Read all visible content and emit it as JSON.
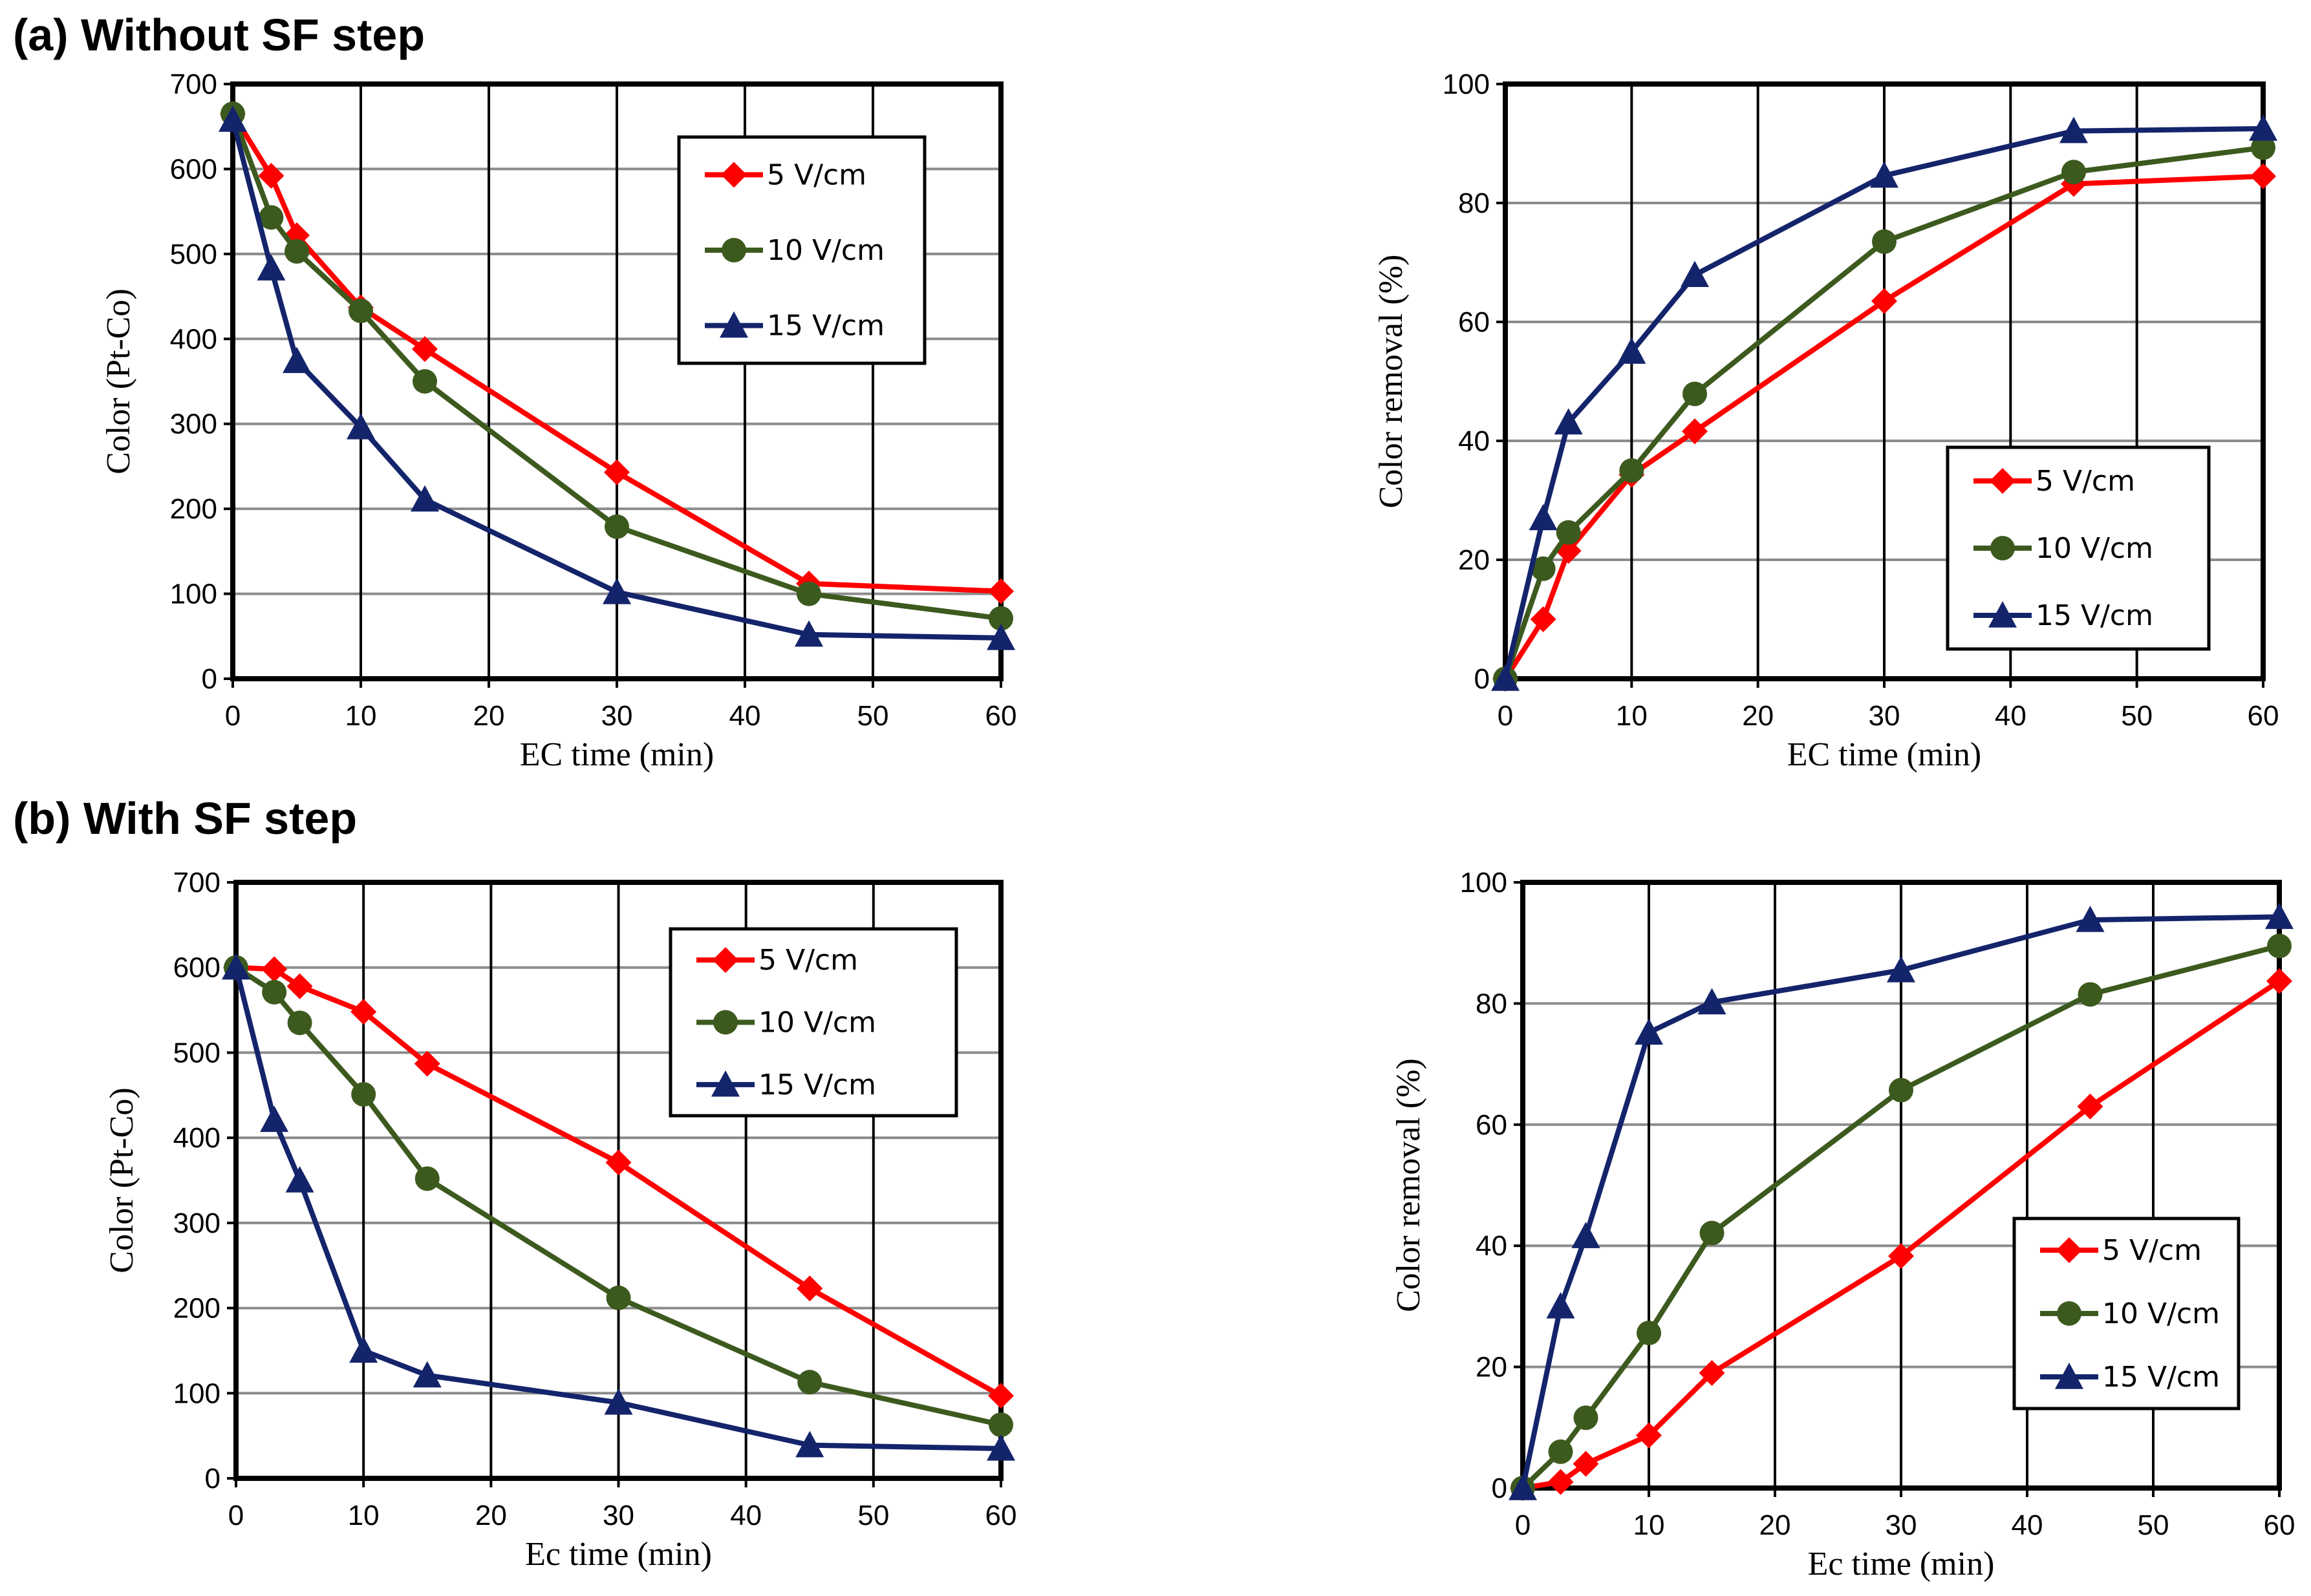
{
  "panel_titles": [
    "(a) Without SF step",
    "(b) With SF step"
  ],
  "colors": {
    "5": "#ff0000",
    "10": "#3d5a1e",
    "15": "#14246b"
  },
  "chart_data": [
    {
      "id": "a-color",
      "type": "line",
      "xlabel": "EC time (min)",
      "ylabel": "Color (Pt-Co)",
      "xlim": [
        0,
        60
      ],
      "ylim": [
        0,
        700
      ],
      "xticks": [
        0,
        10,
        20,
        30,
        40,
        50,
        60
      ],
      "yticks": [
        0,
        100,
        200,
        300,
        400,
        500,
        600,
        700
      ],
      "grid": true,
      "legend": "top-right",
      "series": [
        {
          "name": "5 V/cm",
          "marker": "diamond",
          "x": [
            0,
            3,
            5,
            10,
            15,
            30,
            45,
            60
          ],
          "y": [
            665,
            592,
            522,
            437,
            388,
            243,
            112,
            103
          ]
        },
        {
          "name": "10 V/cm",
          "marker": "circle",
          "x": [
            0,
            3,
            5,
            10,
            15,
            30,
            45,
            60
          ],
          "y": [
            665,
            543,
            503,
            433,
            350,
            179,
            100,
            71
          ]
        },
        {
          "name": "15 V/cm",
          "marker": "triangle",
          "x": [
            0,
            3,
            5,
            10,
            15,
            30,
            45,
            60
          ],
          "y": [
            658,
            483,
            374,
            296,
            211,
            102,
            52,
            48
          ]
        }
      ]
    },
    {
      "id": "a-removal",
      "type": "line",
      "xlabel": "EC time (min)",
      "ylabel": "Color  removal (%)",
      "xlim": [
        0,
        60
      ],
      "ylim": [
        0,
        100
      ],
      "xticks": [
        0,
        10,
        20,
        30,
        40,
        50,
        60
      ],
      "yticks": [
        0,
        20,
        40,
        60,
        80,
        100
      ],
      "grid": true,
      "legend": "bottom-right",
      "series": [
        {
          "name": "5 V/cm",
          "marker": "diamond",
          "x": [
            0,
            3,
            5,
            10,
            15,
            30,
            45,
            60
          ],
          "y": [
            0,
            10,
            21.5,
            34.3,
            41.6,
            63.5,
            83.2,
            84.5
          ]
        },
        {
          "name": "10 V/cm",
          "marker": "circle",
          "x": [
            0,
            3,
            5,
            10,
            15,
            30,
            45,
            60
          ],
          "y": [
            0,
            18.5,
            24.6,
            35,
            47.9,
            73.5,
            85.2,
            89.3
          ]
        },
        {
          "name": "15 V/cm",
          "marker": "triangle",
          "x": [
            0,
            3,
            5,
            10,
            15,
            30,
            45,
            60
          ],
          "y": [
            0,
            27,
            43.1,
            55,
            67.9,
            84.6,
            92.1,
            92.5
          ]
        }
      ]
    },
    {
      "id": "b-color",
      "type": "line",
      "xlabel": "Ec time (min)",
      "ylabel": "Color (Pt-Co)",
      "xlim": [
        0,
        60
      ],
      "ylim": [
        0,
        700
      ],
      "xticks": [
        0,
        10,
        20,
        30,
        40,
        50,
        60
      ],
      "yticks": [
        0,
        100,
        200,
        300,
        400,
        500,
        600,
        700
      ],
      "grid": true,
      "legend": "top-right",
      "series": [
        {
          "name": "5 V/cm",
          "marker": "diamond",
          "x": [
            0,
            3,
            5,
            10,
            15,
            30,
            45,
            60
          ],
          "y": [
            600,
            598,
            578,
            548,
            487,
            371,
            223,
            97
          ]
        },
        {
          "name": "10 V/cm",
          "marker": "circle",
          "x": [
            0,
            3,
            5,
            10,
            15,
            30,
            45,
            60
          ],
          "y": [
            600,
            571,
            535,
            451,
            352,
            212,
            113,
            63
          ]
        },
        {
          "name": "15 V/cm",
          "marker": "triangle",
          "x": [
            0,
            3,
            5,
            10,
            15,
            30,
            45,
            60
          ],
          "y": [
            600,
            421,
            350,
            150,
            121,
            89,
            39,
            35
          ]
        }
      ]
    },
    {
      "id": "b-removal",
      "type": "line",
      "xlabel": "Ec time (min)",
      "ylabel": "Color  removal (%)",
      "xlim": [
        0,
        60
      ],
      "ylim": [
        0,
        100
      ],
      "xticks": [
        0,
        10,
        20,
        30,
        40,
        50,
        60
      ],
      "yticks": [
        0,
        20,
        40,
        60,
        80,
        100
      ],
      "grid": true,
      "legend": "bottom-right",
      "series": [
        {
          "name": "5 V/cm",
          "marker": "diamond",
          "x": [
            0,
            3,
            5,
            10,
            15,
            30,
            45,
            60
          ],
          "y": [
            0,
            1,
            4,
            8.7,
            19,
            38.3,
            63,
            83.7
          ]
        },
        {
          "name": "10 V/cm",
          "marker": "circle",
          "x": [
            0,
            3,
            5,
            10,
            15,
            30,
            45,
            60
          ],
          "y": [
            0,
            6,
            11.6,
            25.6,
            42.1,
            65.7,
            81.5,
            89.5
          ]
        },
        {
          "name": "15 V/cm",
          "marker": "triangle",
          "x": [
            0,
            3,
            5,
            10,
            15,
            30,
            45,
            60
          ],
          "y": [
            0,
            30,
            41.6,
            75.2,
            80.2,
            85.5,
            93.8,
            94.3
          ]
        }
      ]
    }
  ]
}
